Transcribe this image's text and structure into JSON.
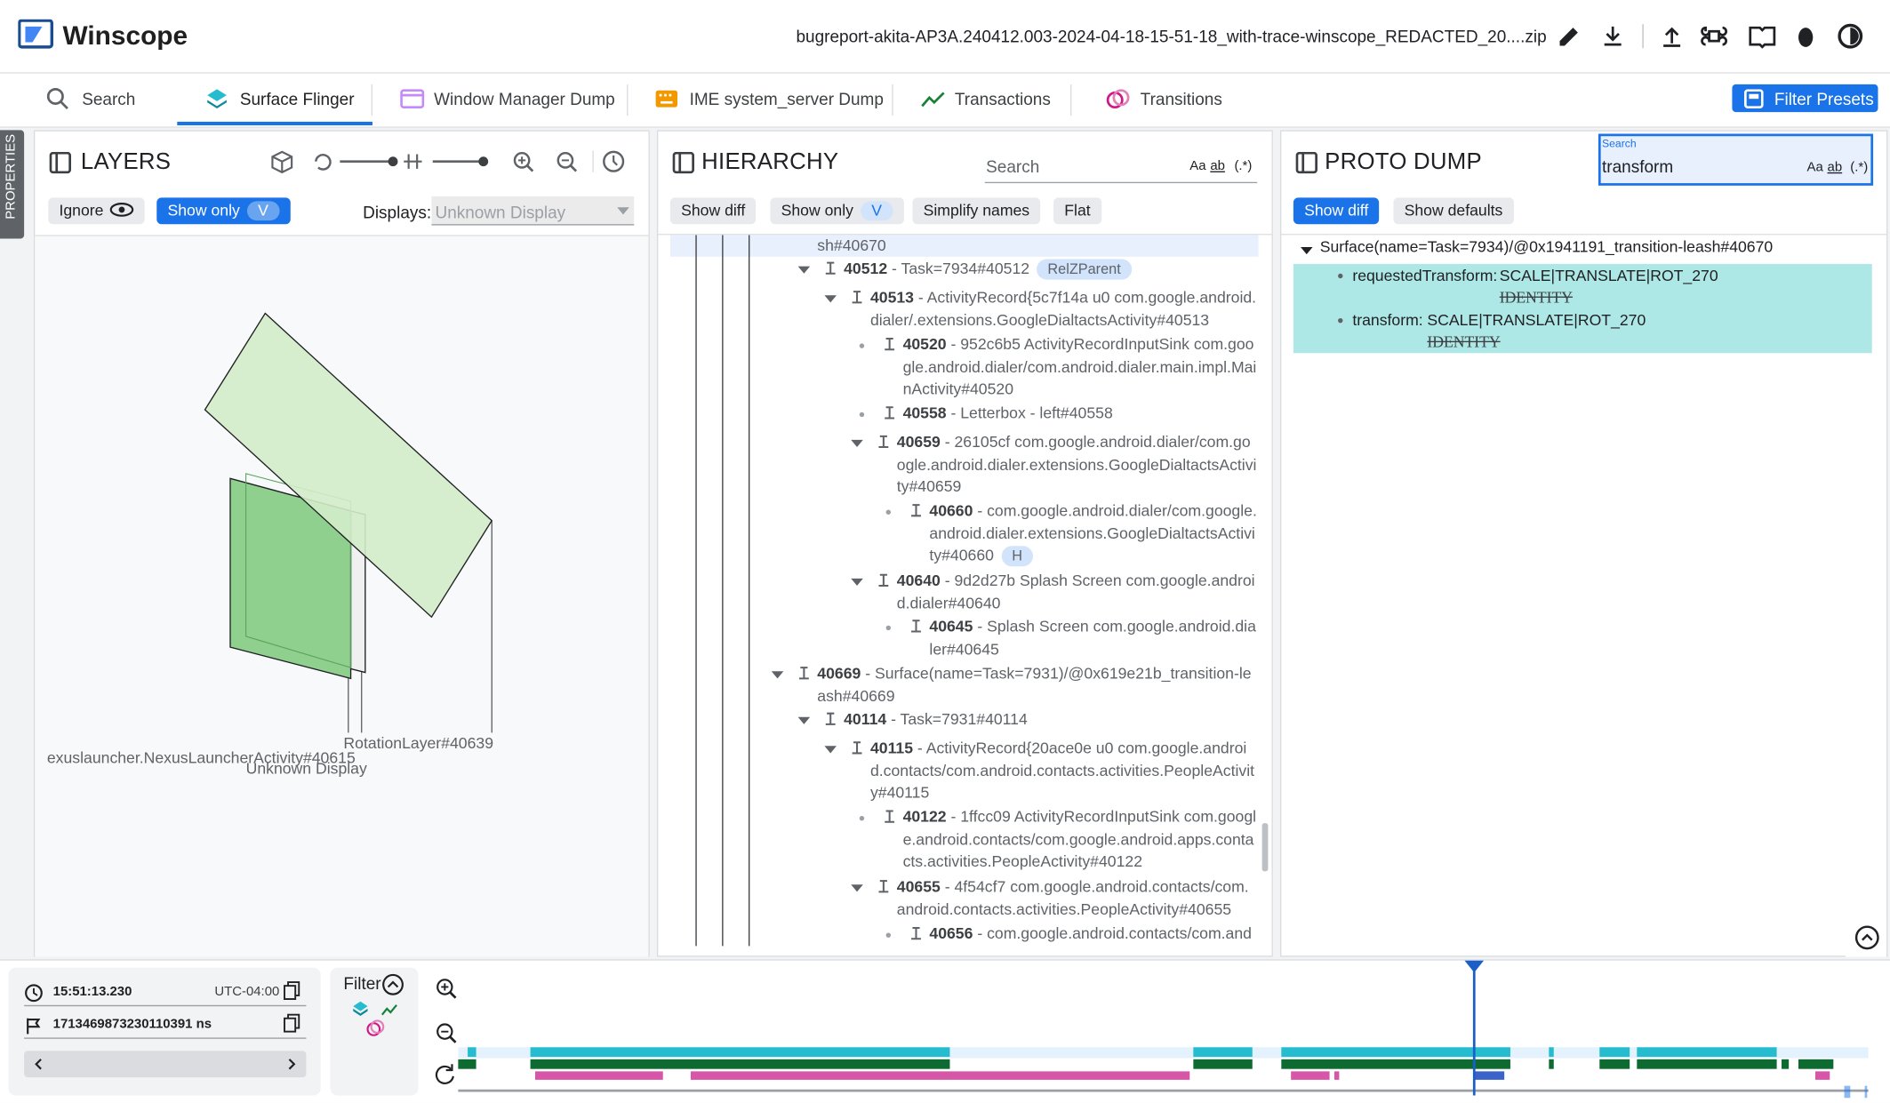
{
  "header": {
    "app_name": "Winscope",
    "filename": "bugreport-akita-AP3A.240412.003-2024-04-18-15-51-18_with-trace-winscope_REDACTED_20....zip"
  },
  "tabs": [
    "Search",
    "Surface Flinger",
    "Window Manager Dump",
    "IME system_server Dump",
    "Transactions",
    "Transitions"
  ],
  "filter_presets": "Filter Presets",
  "properties_tab": "PROPERTIES",
  "layers": {
    "title": "LAYERS",
    "ignore": "Ignore",
    "show_only": "Show only",
    "show_only_key": "V",
    "displays_label": "Displays:",
    "displays_value": "Unknown Display",
    "labels": [
      "exuslauncher.NexusLauncherActivity#40615",
      "RotationLayer#40639",
      "Unknown Display"
    ]
  },
  "hierarchy": {
    "title": "HIERARCHY",
    "search_placeholder": "Search",
    "search_options": [
      "Aa",
      "ab",
      "(.*)"
    ],
    "buttons": [
      "Show diff",
      "Show only",
      "Simplify names",
      "Flat"
    ],
    "show_only_key": "V",
    "nodes": [
      {
        "text": "sh#40670"
      },
      {
        "id": "40512",
        "text": " - Task=7934#40512",
        "chip": "RelZParent"
      },
      {
        "id": "40513",
        "text": " - ActivityRecord{5c7f14a u0 com.google.android.dialer/.extensions.GoogleDialtactsActivity#40513"
      },
      {
        "id": "40520",
        "text": " - 952c6b5 ActivityRecordInputSink com.google.android.dialer/com.android.dialer.main.impl.MainActivity#40520"
      },
      {
        "id": "40558",
        "text": " - Letterbox - left#40558"
      },
      {
        "id": "40659",
        "text": " - 26105cf com.google.android.dialer/com.google.android.dialer.extensions.GoogleDialtactsActivity#40659"
      },
      {
        "id": "40660",
        "text": " - com.google.android.dialer/com.google.android.dialer.extensions.GoogleDialtactsActivity#40660",
        "chip": "H"
      },
      {
        "id": "40640",
        "text": " - 9d2d27b Splash Screen com.google.android.dialer#40640"
      },
      {
        "id": "40645",
        "text": " - Splash Screen com.google.android.dialer#40645"
      },
      {
        "id": "40669",
        "text": " - Surface(name=Task=7931)/@0x619e21b_transition-leash#40669"
      },
      {
        "id": "40114",
        "text": " - Task=7931#40114"
      },
      {
        "id": "40115",
        "text": " - ActivityRecord{20ace0e u0 com.google.android.contacts/com.android.contacts.activities.PeopleActivity#40115"
      },
      {
        "id": "40122",
        "text": " - 1ffcc09 ActivityRecordInputSink com.google.android.contacts/com.google.android.apps.contacts.activities.PeopleActivity#40122"
      },
      {
        "id": "40655",
        "text": " - 4f54cf7 com.google.android.contacts/com.android.contacts.activities.PeopleActivity#40655"
      },
      {
        "id": "40656",
        "text": " - com.google.android.contacts/com.and"
      }
    ]
  },
  "proto_dump": {
    "title": "PROTO DUMP",
    "search_label": "Search",
    "search_value": "transform",
    "search_options": [
      "Aa",
      "ab",
      "(.*)"
    ],
    "buttons": [
      "Show diff",
      "Show defaults"
    ],
    "root": "Surface(name=Task=7934)/@0x1941191_transition-leash#40670",
    "properties": [
      {
        "key": "requestedTransform:",
        "value": "SCALE|TRANSLATE|ROT_270",
        "old": "IDENTITY"
      },
      {
        "key": "transform:",
        "value": "SCALE|TRANSLATE|ROT_270",
        "old": "IDENTITY"
      }
    ]
  },
  "timeline": {
    "time": "15:51:13.230",
    "timezone": "UTC-04:00",
    "timestamp_ns": "1713469873230110391 ns",
    "filter": "Filter"
  }
}
